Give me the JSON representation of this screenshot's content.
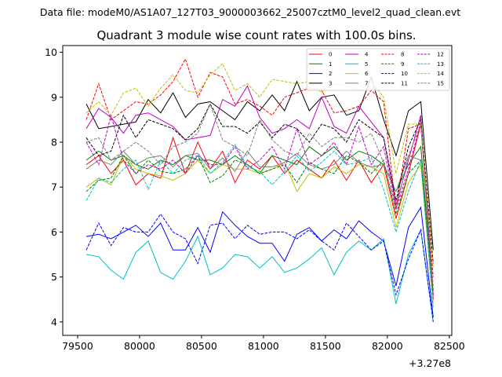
{
  "figure": {
    "suptitle": "Data file: modeM0/AS1A07_127T03_9000003662_25007cztM0_level2_quad_clean.evt"
  },
  "chart_data": {
    "type": "line",
    "title": "Quadrant 3 module wise count rates with 100.0s bins.",
    "xlabel": "",
    "ylabel": "",
    "x_offset_label": "+3.27e8",
    "xlim": [
      79380,
      82520
    ],
    "ylim": [
      3.7,
      10.15
    ],
    "x_ticks": [
      79500,
      80000,
      80500,
      81000,
      81500,
      82000,
      82500
    ],
    "y_ticks": [
      4,
      5,
      6,
      7,
      8,
      9,
      10
    ],
    "legend_location": "upper-right",
    "x": [
      79570,
      79670,
      79770,
      79870,
      79970,
      80070,
      80170,
      80270,
      80370,
      80470,
      80570,
      80670,
      80770,
      80870,
      80970,
      81070,
      81170,
      81270,
      81370,
      81470,
      81570,
      81670,
      81770,
      81870,
      81970,
      82070,
      82170,
      82270,
      82370
    ],
    "series": [
      {
        "name": "0",
        "color": "#ff0000",
        "dash": false,
        "values": [
          7.5,
          7.7,
          7.3,
          7.6,
          7.05,
          7.3,
          7.2,
          8.1,
          7.3,
          8.0,
          7.4,
          7.8,
          7.1,
          7.6,
          7.4,
          7.7,
          7.3,
          7.6,
          7.4,
          7.2,
          7.6,
          7.15,
          7.6,
          7.1,
          7.5,
          6.3,
          7.3,
          8.4,
          4.6
        ]
      },
      {
        "name": "1",
        "color": "#008000",
        "dash": false,
        "values": [
          7.6,
          7.8,
          7.6,
          7.7,
          7.5,
          7.4,
          7.6,
          7.5,
          7.7,
          7.6,
          7.6,
          7.5,
          7.7,
          7.5,
          7.3,
          7.7,
          7.6,
          7.5,
          7.9,
          7.7,
          7.9,
          7.6,
          7.8,
          7.7,
          7.5,
          6.9,
          7.5,
          7.9,
          4.5
        ]
      },
      {
        "name": "2",
        "color": "#0000ff",
        "dash": false,
        "values": [
          5.9,
          5.95,
          5.85,
          6.0,
          6.15,
          5.9,
          6.2,
          5.6,
          5.6,
          6.1,
          5.55,
          6.45,
          6.15,
          5.9,
          5.75,
          5.75,
          5.35,
          5.95,
          6.1,
          5.8,
          6.05,
          5.85,
          6.25,
          6.0,
          5.8,
          4.8,
          6.1,
          6.55,
          4.1
        ]
      },
      {
        "name": "3",
        "color": "#000000",
        "dash": false,
        "values": [
          8.85,
          8.3,
          8.35,
          8.4,
          8.45,
          8.95,
          8.65,
          9.1,
          8.55,
          8.85,
          8.9,
          8.7,
          8.5,
          8.9,
          8.7,
          9.05,
          8.7,
          9.35,
          8.7,
          9.0,
          9.05,
          8.6,
          8.7,
          9.45,
          8.5,
          7.7,
          8.7,
          8.9,
          5.6
        ]
      },
      {
        "name": "4",
        "color": "#c000c0",
        "dash": false,
        "values": [
          8.3,
          8.75,
          8.55,
          8.2,
          8.6,
          8.65,
          8.5,
          8.35,
          8.05,
          8.1,
          8.15,
          8.95,
          8.8,
          9.25,
          8.55,
          8.2,
          8.3,
          8.5,
          8.3,
          9.0,
          8.35,
          8.2,
          8.8,
          8.45,
          8.1,
          6.6,
          7.6,
          8.6,
          4.5
        ]
      },
      {
        "name": "5",
        "color": "#00c0c0",
        "dash": false,
        "values": [
          5.5,
          5.45,
          5.15,
          4.95,
          5.55,
          5.8,
          5.1,
          4.95,
          5.35,
          5.9,
          5.05,
          5.2,
          5.5,
          5.45,
          5.2,
          5.45,
          5.1,
          5.2,
          5.4,
          5.65,
          5.05,
          5.55,
          5.8,
          5.6,
          5.85,
          4.4,
          5.5,
          6.05,
          4.0
        ]
      },
      {
        "name": "6",
        "color": "#c0c000",
        "dash": false,
        "values": [
          7.0,
          7.2,
          7.05,
          7.7,
          7.4,
          7.3,
          7.25,
          7.15,
          7.3,
          7.6,
          7.3,
          7.5,
          7.4,
          7.4,
          7.3,
          7.4,
          7.55,
          6.9,
          7.3,
          7.2,
          7.45,
          7.3,
          7.5,
          7.45,
          7.3,
          6.1,
          7.1,
          7.5,
          4.4
        ]
      },
      {
        "name": "7",
        "color": "#808080",
        "dash": false,
        "values": [
          7.4,
          7.6,
          7.5,
          7.8,
          7.5,
          7.65,
          7.7,
          7.45,
          7.7,
          7.75,
          7.4,
          7.65,
          7.35,
          7.8,
          7.45,
          7.45,
          7.55,
          7.75,
          7.5,
          7.4,
          7.5,
          7.8,
          7.55,
          7.45,
          7.5,
          6.9,
          7.7,
          7.6,
          4.6
        ]
      },
      {
        "name": "8",
        "color": "#ff0000",
        "dash": true,
        "values": [
          8.5,
          9.3,
          8.5,
          8.7,
          8.9,
          8.85,
          9.05,
          9.35,
          9.85,
          9.0,
          9.55,
          9.45,
          8.85,
          8.95,
          8.8,
          8.6,
          9.0,
          9.1,
          9.2,
          9.15,
          8.65,
          8.7,
          8.8,
          9.15,
          8.9,
          6.5,
          8.3,
          8.4,
          5.0
        ]
      },
      {
        "name": "9",
        "color": "#008000",
        "dash": true,
        "values": [
          6.9,
          7.15,
          7.2,
          7.7,
          7.3,
          7.6,
          7.35,
          7.3,
          7.4,
          7.7,
          7.1,
          7.25,
          7.6,
          7.5,
          7.3,
          7.4,
          7.5,
          7.1,
          7.55,
          7.4,
          7.3,
          7.7,
          7.55,
          7.3,
          7.6,
          6.4,
          7.3,
          7.6,
          4.7
        ]
      },
      {
        "name": "10",
        "color": "#0000ff",
        "dash": true,
        "values": [
          5.6,
          6.2,
          5.7,
          6.1,
          6.0,
          6.0,
          6.4,
          6.0,
          5.85,
          5.3,
          6.15,
          6.2,
          5.85,
          6.15,
          5.95,
          6.0,
          6.0,
          5.85,
          6.05,
          5.8,
          5.6,
          6.2,
          5.9,
          5.6,
          5.8,
          4.6,
          5.4,
          6.05,
          4.0
        ]
      },
      {
        "name": "11",
        "color": "#000000",
        "dash": true,
        "values": [
          8.1,
          7.7,
          7.8,
          8.6,
          8.1,
          8.5,
          8.4,
          8.3,
          8.05,
          8.3,
          8.85,
          8.35,
          8.35,
          8.2,
          8.45,
          8.1,
          8.4,
          8.3,
          8.0,
          8.4,
          8.3,
          8.0,
          8.5,
          8.3,
          8.1,
          6.7,
          7.9,
          8.5,
          5.3
        ]
      },
      {
        "name": "12",
        "color": "#c000c0",
        "dash": true,
        "values": [
          8.0,
          7.5,
          8.6,
          7.6,
          7.3,
          7.5,
          7.4,
          7.6,
          7.3,
          7.7,
          7.5,
          7.5,
          7.9,
          7.4,
          7.6,
          7.9,
          7.4,
          8.3,
          7.5,
          7.7,
          8.0,
          7.5,
          8.35,
          7.5,
          7.9,
          6.5,
          7.4,
          8.45,
          4.6
        ]
      },
      {
        "name": "13",
        "color": "#00c0c0",
        "dash": true,
        "values": [
          6.7,
          7.2,
          7.1,
          7.4,
          7.6,
          6.95,
          7.6,
          7.3,
          7.6,
          7.7,
          7.3,
          7.55,
          7.95,
          7.45,
          7.35,
          7.05,
          7.35,
          7.7,
          7.35,
          7.55,
          7.8,
          7.5,
          7.55,
          7.65,
          6.95,
          6.0,
          6.9,
          7.6,
          4.3
        ]
      },
      {
        "name": "14",
        "color": "#c0c000",
        "dash": true,
        "values": [
          8.65,
          8.9,
          8.6,
          9.1,
          9.2,
          8.8,
          9.2,
          9.5,
          9.15,
          9.1,
          9.5,
          9.75,
          9.15,
          9.3,
          9.0,
          9.4,
          9.35,
          9.3,
          9.35,
          9.1,
          9.3,
          9.25,
          9.15,
          9.35,
          9.0,
          7.3,
          8.4,
          8.4,
          5.2
        ]
      },
      {
        "name": "15",
        "color": "#808080",
        "dash": true,
        "values": [
          8.0,
          8.1,
          7.6,
          7.8,
          8.0,
          7.8,
          7.5,
          7.9,
          8.0,
          8.2,
          8.85,
          8.05,
          7.9,
          7.7,
          8.5,
          8.05,
          7.8,
          7.7,
          8.2,
          7.9,
          8.1,
          8.1,
          8.0,
          8.2,
          7.55,
          6.5,
          7.7,
          8.4,
          4.8
        ]
      }
    ]
  }
}
